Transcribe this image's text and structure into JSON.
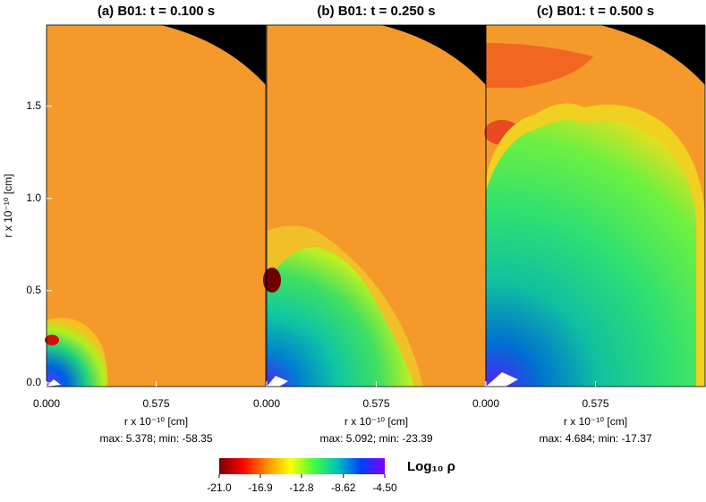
{
  "chart_data": [
    {
      "type": "heatmap",
      "title": "(a)  B01: t = 0.100 s",
      "xlabel": "r x 10⁻¹⁰ [cm]",
      "ylabel": "r x 10⁻¹⁰ [cm]",
      "stats": "max: 5.378; min: -58.35",
      "xlim": [
        0,
        1.15
      ],
      "ylim": [
        -0.02,
        1.94
      ],
      "xticks": [
        {
          "value": 0,
          "label": "0.000"
        },
        {
          "value": 0.575,
          "label": "0.575"
        }
      ],
      "yticks": [
        {
          "value": 0,
          "label": "0.0"
        },
        0.5,
        {
          "value": 1,
          "label": "1.0"
        },
        1.5
      ]
    },
    {
      "type": "heatmap",
      "title": "(b)  B01: t = 0.250 s",
      "xlabel": "r x 10⁻¹⁰ [cm]",
      "stats": "max: 5.092; min: -23.39",
      "xlim": [
        0,
        1.15
      ],
      "ylim": [
        -0.02,
        1.94
      ],
      "xticks": [
        {
          "value": 0,
          "label": "0.000"
        },
        {
          "value": 0.575,
          "label": "0.575"
        }
      ]
    },
    {
      "type": "heatmap",
      "title": "(c)  B01: t = 0.500 s",
      "xlabel": "r x 10⁻¹⁰ [cm]",
      "stats": "max: 4.684; min: -17.37",
      "xlim": [
        0,
        1.15
      ],
      "ylim": [
        -0.02,
        1.94
      ],
      "xticks": [
        {
          "value": 0,
          "label": "0.000"
        },
        {
          "value": 0.575,
          "label": "0.575"
        }
      ]
    }
  ],
  "colorbar": {
    "label": "Log₁₀ ρ",
    "clim": [
      -21.0,
      -4.5
    ],
    "colors": [
      "#7a0000",
      "#ff0000",
      "#ff8c00",
      "#ffff00",
      "#40ff40",
      "#00c0c0",
      "#0040ff",
      "#8000ff"
    ],
    "ticks": [
      {
        "value": -21.0,
        "label": "-21.0"
      },
      -16.9,
      -12.8,
      -8.62,
      {
        "value": -4.5,
        "label": "-4.50"
      }
    ]
  }
}
